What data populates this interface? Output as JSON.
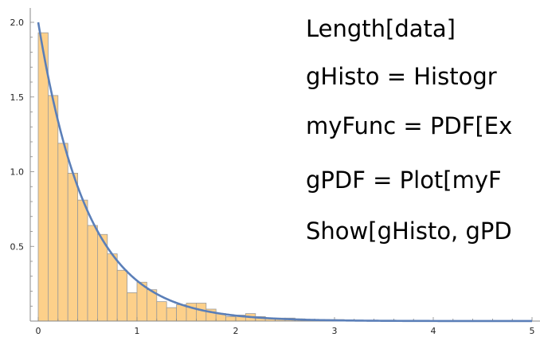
{
  "code_lines": [
    "Length[data]",
    "gHisto = Histogr",
    "myFunc = PDF[Ex",
    "gPDF = Plot[myF",
    "Show[gHisto, gPD"
  ],
  "chart_data": {
    "type": "bar",
    "title": "",
    "xlabel": "",
    "ylabel": "",
    "bin_width": 0.1,
    "bin_starts": [
      0,
      0.1,
      0.2,
      0.3,
      0.4,
      0.5,
      0.6,
      0.7,
      0.8,
      0.9,
      1.0,
      1.1,
      1.2,
      1.3,
      1.4,
      1.5,
      1.6,
      1.7,
      1.8,
      1.9,
      2.0,
      2.1,
      2.2,
      2.3,
      2.4,
      2.5,
      2.6,
      2.7,
      2.8,
      2.9,
      3.0
    ],
    "values": [
      1.93,
      1.51,
      1.19,
      0.99,
      0.81,
      0.64,
      0.58,
      0.45,
      0.34,
      0.19,
      0.26,
      0.21,
      0.13,
      0.09,
      0.11,
      0.12,
      0.12,
      0.08,
      0.05,
      0.03,
      0.04,
      0.05,
      0.03,
      0.02,
      0.02,
      0.02,
      0.015,
      0.01,
      0.01,
      0.01,
      0.01
    ],
    "curve": {
      "name": "PDF",
      "rate": 2.0,
      "color": "#5b7fb8"
    },
    "bar_color": "#fdd08a",
    "xlim": [
      0,
      5
    ],
    "ylim": [
      0,
      2.1
    ],
    "x_ticks": [
      0,
      1,
      2,
      3,
      4,
      5
    ],
    "x_tick_labels": [
      "0",
      "1",
      "2",
      "3",
      "4",
      "5"
    ],
    "y_ticks": [
      0.5,
      1.0,
      1.5,
      2.0
    ],
    "y_tick_labels": [
      "0.5",
      "1.0",
      "1.5",
      "2.0"
    ],
    "grid": false
  }
}
